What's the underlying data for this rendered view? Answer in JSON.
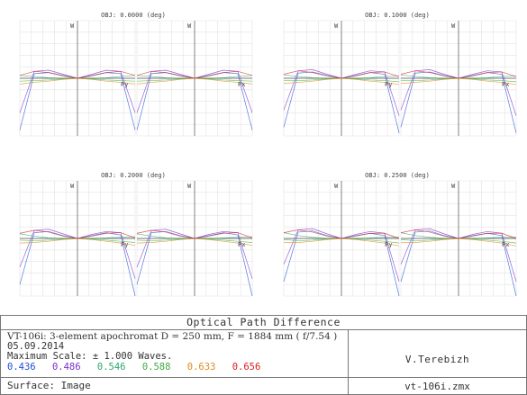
{
  "chart_data": {
    "type": "line",
    "title": "Optical Path Difference",
    "ylim": [
      -1,
      1
    ],
    "xlim": [
      -1,
      1
    ],
    "grid": true,
    "wavelengths": [
      "0.436",
      "0.486",
      "0.546",
      "0.588",
      "0.633",
      "0.656"
    ],
    "colors": [
      "#1f4fd6",
      "#7a2fc4",
      "#2fa86b",
      "#3fae3f",
      "#e08a1e",
      "#d92020"
    ],
    "fields": [
      {
        "label": "OBJ: 0.0000 (deg)",
        "tan_xlabel": "Py",
        "sag_xlabel": "Px",
        "ylabel": "W"
      },
      {
        "label": "OBJ: 0.1000 (deg)",
        "tan_xlabel": "Py",
        "sag_xlabel": "Px",
        "ylabel": "W"
      },
      {
        "label": "OBJ: 0.2000 (deg)",
        "tan_xlabel": "Py",
        "sag_xlabel": "Px",
        "ylabel": "W"
      },
      {
        "label": "OBJ: 0.2500 (deg)",
        "tan_xlabel": "Py",
        "sag_xlabel": "Px",
        "ylabel": "W"
      }
    ],
    "series_by_field": [
      [
        {
          "name": "0.436",
          "x": [
            -1,
            -0.75,
            -0.5,
            -0.25,
            0,
            0.25,
            0.5,
            0.75,
            1
          ],
          "y": [
            -0.9,
            0.08,
            0.1,
            0.05,
            0,
            0.05,
            0.1,
            0.08,
            -0.9
          ]
        },
        {
          "name": "0.486",
          "x": [
            -1,
            -0.75,
            -0.5,
            -0.25,
            0,
            0.25,
            0.5,
            0.75,
            1
          ],
          "y": [
            -0.6,
            0.12,
            0.14,
            0.07,
            0,
            0.07,
            0.14,
            0.12,
            -0.6
          ]
        },
        {
          "name": "0.546",
          "x": [
            -1,
            -0.75,
            -0.5,
            -0.25,
            0,
            0.25,
            0.5,
            0.75,
            1
          ],
          "y": [
            0.05,
            0.03,
            0.01,
            0,
            0,
            0,
            0.01,
            0.03,
            0.05
          ]
        },
        {
          "name": "0.588",
          "x": [
            -1,
            -0.75,
            -0.5,
            -0.25,
            0,
            0.25,
            0.5,
            0.75,
            1
          ],
          "y": [
            -0.05,
            -0.04,
            -0.03,
            -0.01,
            0,
            -0.01,
            -0.03,
            -0.04,
            -0.05
          ]
        },
        {
          "name": "0.633",
          "x": [
            -1,
            -0.75,
            -0.5,
            -0.25,
            0,
            0.25,
            0.5,
            0.75,
            1
          ],
          "y": [
            -0.1,
            -0.07,
            -0.05,
            -0.02,
            0,
            -0.02,
            -0.05,
            -0.07,
            -0.1
          ]
        },
        {
          "name": "0.656",
          "x": [
            -1,
            -0.75,
            -0.5,
            -0.25,
            0,
            0.25,
            0.5,
            0.75,
            1
          ],
          "y": [
            0.05,
            0.12,
            0.1,
            0.04,
            0,
            0.04,
            0.1,
            0.12,
            0.05
          ]
        }
      ],
      [
        {
          "name": "0.436",
          "x": [
            -1,
            -0.75,
            -0.5,
            -0.25,
            0,
            0.25,
            0.5,
            0.75,
            1
          ],
          "y": [
            -0.85,
            0.09,
            0.11,
            0.05,
            0,
            0.05,
            0.1,
            0.07,
            -0.95
          ]
        },
        {
          "name": "0.486",
          "x": [
            -1,
            -0.75,
            -0.5,
            -0.25,
            0,
            0.25,
            0.5,
            0.75,
            1
          ],
          "y": [
            -0.55,
            0.13,
            0.15,
            0.07,
            0,
            0.07,
            0.13,
            0.11,
            -0.65
          ]
        },
        {
          "name": "0.546",
          "x": [
            -1,
            -0.75,
            -0.5,
            -0.25,
            0,
            0.25,
            0.5,
            0.75,
            1
          ],
          "y": [
            0.06,
            0.03,
            0.01,
            0,
            0,
            0,
            0.01,
            0.03,
            0.04
          ]
        },
        {
          "name": "0.588",
          "x": [
            -1,
            -0.75,
            -0.5,
            -0.25,
            0,
            0.25,
            0.5,
            0.75,
            1
          ],
          "y": [
            -0.04,
            -0.04,
            -0.03,
            -0.01,
            0,
            -0.01,
            -0.03,
            -0.04,
            -0.06
          ]
        },
        {
          "name": "0.633",
          "x": [
            -1,
            -0.75,
            -0.5,
            -0.25,
            0,
            0.25,
            0.5,
            0.75,
            1
          ],
          "y": [
            -0.09,
            -0.07,
            -0.05,
            -0.02,
            0,
            -0.02,
            -0.05,
            -0.07,
            -0.11
          ]
        },
        {
          "name": "0.656",
          "x": [
            -1,
            -0.75,
            -0.5,
            -0.25,
            0,
            0.25,
            0.5,
            0.75,
            1
          ],
          "y": [
            0.07,
            0.13,
            0.1,
            0.04,
            0,
            0.04,
            0.1,
            0.11,
            0.03
          ]
        }
      ],
      [
        {
          "name": "0.436",
          "x": [
            -1,
            -0.75,
            -0.5,
            -0.25,
            0,
            0.25,
            0.5,
            0.75,
            1
          ],
          "y": [
            -0.8,
            0.1,
            0.12,
            0.05,
            0,
            0.05,
            0.1,
            0.06,
            -1.0
          ]
        },
        {
          "name": "0.486",
          "x": [
            -1,
            -0.75,
            -0.5,
            -0.25,
            0,
            0.25,
            0.5,
            0.75,
            1
          ],
          "y": [
            -0.5,
            0.14,
            0.16,
            0.08,
            0,
            0.07,
            0.12,
            0.1,
            -0.7
          ]
        },
        {
          "name": "0.546",
          "x": [
            -1,
            -0.75,
            -0.5,
            -0.25,
            0,
            0.25,
            0.5,
            0.75,
            1
          ],
          "y": [
            0.08,
            0.04,
            0.01,
            0,
            0,
            0,
            0.01,
            0.02,
            0.03
          ]
        },
        {
          "name": "0.588",
          "x": [
            -1,
            -0.75,
            -0.5,
            -0.25,
            0,
            0.25,
            0.5,
            0.75,
            1
          ],
          "y": [
            -0.03,
            -0.04,
            -0.03,
            -0.01,
            0,
            -0.01,
            -0.03,
            -0.05,
            -0.07
          ]
        },
        {
          "name": "0.633",
          "x": [
            -1,
            -0.75,
            -0.5,
            -0.25,
            0,
            0.25,
            0.5,
            0.75,
            1
          ],
          "y": [
            -0.08,
            -0.07,
            -0.05,
            -0.02,
            0,
            -0.02,
            -0.05,
            -0.08,
            -0.12
          ]
        },
        {
          "name": "0.656",
          "x": [
            -1,
            -0.75,
            -0.5,
            -0.25,
            0,
            0.25,
            0.5,
            0.75,
            1
          ],
          "y": [
            0.09,
            0.14,
            0.11,
            0.04,
            0,
            0.04,
            0.09,
            0.1,
            0.01
          ]
        }
      ],
      [
        {
          "name": "0.436",
          "x": [
            -1,
            -0.75,
            -0.5,
            -0.25,
            0,
            0.25,
            0.5,
            0.75,
            1
          ],
          "y": [
            -0.75,
            0.11,
            0.13,
            0.05,
            0,
            0.05,
            0.09,
            0.05,
            -1.0
          ]
        },
        {
          "name": "0.486",
          "x": [
            -1,
            -0.75,
            -0.5,
            -0.25,
            0,
            0.25,
            0.5,
            0.75,
            1
          ],
          "y": [
            -0.45,
            0.15,
            0.17,
            0.08,
            0,
            0.07,
            0.12,
            0.09,
            -0.75
          ]
        },
        {
          "name": "0.546",
          "x": [
            -1,
            -0.75,
            -0.5,
            -0.25,
            0,
            0.25,
            0.5,
            0.75,
            1
          ],
          "y": [
            0.1,
            0.05,
            0.02,
            0,
            0,
            0,
            0.01,
            0.02,
            0.02
          ]
        },
        {
          "name": "0.588",
          "x": [
            -1,
            -0.75,
            -0.5,
            -0.25,
            0,
            0.25,
            0.5,
            0.75,
            1
          ],
          "y": [
            -0.02,
            -0.04,
            -0.03,
            -0.01,
            0,
            -0.01,
            -0.03,
            -0.05,
            -0.08
          ]
        },
        {
          "name": "0.633",
          "x": [
            -1,
            -0.75,
            -0.5,
            -0.25,
            0,
            0.25,
            0.5,
            0.75,
            1
          ],
          "y": [
            -0.07,
            -0.07,
            -0.05,
            -0.02,
            0,
            -0.02,
            -0.05,
            -0.08,
            -0.13
          ]
        },
        {
          "name": "0.656",
          "x": [
            -1,
            -0.75,
            -0.5,
            -0.25,
            0,
            0.25,
            0.5,
            0.75,
            1
          ],
          "y": [
            0.1,
            0.15,
            0.11,
            0.04,
            0,
            0.04,
            0.09,
            0.09,
            0.0
          ]
        }
      ]
    ]
  },
  "footer": {
    "title": "Optical Path Difference",
    "description": "VT-106i: 3-element apochromat D = 250 mm,  F = 1884 mm  ( f/7.54 )",
    "date": "05.09.2014",
    "max_scale": "Maximum Scale: ± 1.000 Waves.",
    "wavelengths": [
      "0.436",
      "0.486",
      "0.546",
      "0.588",
      "0.633",
      "0.656"
    ],
    "surface": "Surface: Image",
    "author": "V.Terebizh",
    "filename": "vt-106i.zmx"
  }
}
